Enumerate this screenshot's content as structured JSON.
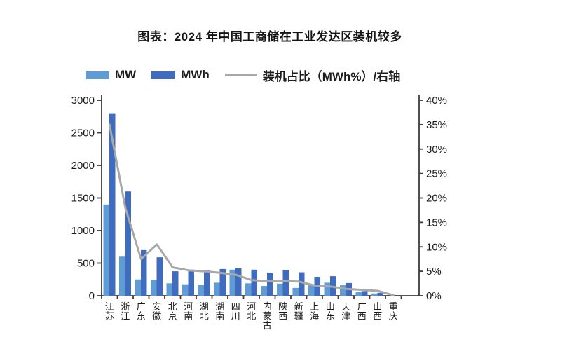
{
  "title": "图表：2024 年中国工商储在工业发达区装机较多",
  "legend": [
    {
      "label": "MW",
      "type": "bar",
      "color": "#5f9bd5"
    },
    {
      "label": "MWh",
      "type": "bar",
      "color": "#3f6cbf"
    },
    {
      "label": "装机占比（MWh%）/右轴",
      "type": "line",
      "color": "#a8a8a8"
    }
  ],
  "chart_data": {
    "type": "bar",
    "subtype": "grouped-bars-with-line",
    "title": "图表：2024 年中国工商储在工业发达区装机较多",
    "categories": [
      "江苏",
      "浙江",
      "广东",
      "安徽",
      "北京",
      "河南",
      "湖北",
      "湖南",
      "四川",
      "河北",
      "内蒙古",
      "陕西",
      "新疆",
      "上海",
      "山东",
      "天津",
      "广西",
      "山西",
      "重庆"
    ],
    "series": [
      {
        "name": "MW",
        "type": "bar",
        "axis": "left",
        "color": "#5f9bd5",
        "values": [
          1400,
          600,
          250,
          240,
          190,
          175,
          165,
          200,
          400,
          190,
          150,
          185,
          120,
          160,
          200,
          160,
          60,
          35,
          0
        ]
      },
      {
        "name": "MWh",
        "type": "bar",
        "axis": "left",
        "color": "#3f6cbf",
        "values": [
          2800,
          1600,
          700,
          590,
          375,
          400,
          390,
          410,
          420,
          400,
          355,
          395,
          360,
          290,
          300,
          195,
          70,
          45,
          0
        ]
      },
      {
        "name": "装机占比（MWh%）/右轴",
        "type": "line",
        "axis": "right",
        "color": "#a8a8a8",
        "values": [
          35,
          18,
          7.5,
          10.5,
          5.8,
          5.2,
          5.0,
          4.7,
          4.3,
          3.2,
          3.0,
          3.0,
          2.9,
          2.1,
          1.9,
          1.4,
          1.2,
          1.0,
          0.1
        ]
      }
    ],
    "left_axis": {
      "min": 0,
      "max": 3000,
      "step": 500,
      "tick_labels": [
        "3000",
        "2500",
        "2000",
        "1500",
        "1000",
        "500",
        "0"
      ]
    },
    "right_axis": {
      "min": 0,
      "max": 40,
      "step": 5,
      "unit": "%",
      "tick_labels": [
        "40%",
        "35%",
        "30%",
        "25%",
        "20%",
        "15%",
        "10%",
        "5%",
        "0%"
      ]
    },
    "grid": false,
    "legend_position": "top",
    "axis_color": "#3d3d3d",
    "tick_text_color": "#1a1a1a"
  }
}
